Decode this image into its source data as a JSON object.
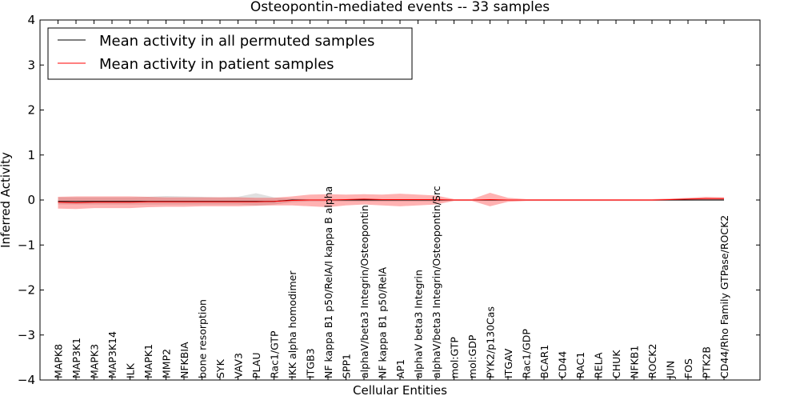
{
  "chart_data": {
    "type": "line",
    "title": "Osteopontin-mediated events -- 33 samples",
    "xlabel": "Cellular Entities",
    "ylabel": "Inferred Activity",
    "ylim": [
      -4,
      4
    ],
    "yticks": [
      "4",
      "3",
      "2",
      "1",
      "0",
      "−1",
      "−2",
      "−3",
      "−4"
    ],
    "ytick_values": [
      4,
      3,
      2,
      1,
      0,
      -1,
      -2,
      -3,
      -4
    ],
    "categories": [
      "MAPK8",
      "MAP3K1",
      "MAPK3",
      "MAP3K14",
      "ILK",
      "MAPK1",
      "MMP2",
      "NFKBIA",
      "bone resorption",
      "SYK",
      "VAV3",
      "PLAU",
      "Rac1/GTP",
      "IKK alpha homodimer",
      "ITGB3",
      "NF kappa B1 p50/RelA/I kappa B alpha",
      "SPP1",
      "alphaV/beta3 Integrin/Osteopontin",
      "NF kappa B1 p50/RelA",
      "AP1",
      "alphaV beta3 Integrin",
      "alphaV/beta3 Integrin/Osteopontin/Src",
      "mol:GTP",
      "mol:GDP",
      "PYK2/p130Cas",
      "ITGAV",
      "Rac1/GDP",
      "BCAR1",
      "CD44",
      "RAC1",
      "RELA",
      "CHUK",
      "NFKB1",
      "ROCK2",
      "JUN",
      "FOS",
      "PTK2B",
      "CD44/Rho Family GTPase/ROCK2"
    ],
    "legend": {
      "location": "top-left",
      "entries": [
        {
          "label": "Mean activity in all permuted samples",
          "color": "#000000"
        },
        {
          "label": "Mean activity in patient samples",
          "color": "#ff0000"
        }
      ]
    },
    "series": [
      {
        "name": "Mean activity in all permuted samples",
        "values": [
          -0.03,
          -0.03,
          -0.03,
          -0.03,
          -0.03,
          -0.03,
          -0.03,
          -0.03,
          -0.03,
          -0.03,
          -0.03,
          -0.03,
          -0.03,
          0.0,
          0.0,
          0.0,
          0.0,
          0.0,
          0.0,
          0.0,
          0.0,
          0.0,
          0.0,
          0.0,
          0.0,
          0.0,
          0.0,
          0.0,
          0.0,
          0.0,
          0.0,
          0.0,
          0.0,
          0.0,
          0.0,
          0.0,
          0.0,
          0.0
        ]
      },
      {
        "name": "Mean activity in patient samples",
        "values": [
          -0.05,
          -0.06,
          -0.05,
          -0.05,
          -0.05,
          -0.04,
          -0.04,
          -0.04,
          -0.04,
          -0.04,
          -0.04,
          -0.04,
          -0.03,
          -0.01,
          0.0,
          0.0,
          0.01,
          0.02,
          0.01,
          0.01,
          0.01,
          0.01,
          0.0,
          0.0,
          0.01,
          0.0,
          0.0,
          0.0,
          0.0,
          0.0,
          0.0,
          0.0,
          0.0,
          0.0,
          0.01,
          0.02,
          0.03,
          0.03
        ]
      }
    ],
    "bands": [
      {
        "name": "permuted samples spread",
        "color": "#bbbbbb",
        "upper": [
          0.06,
          0.06,
          0.06,
          0.06,
          0.06,
          0.07,
          0.09,
          0.08,
          0.07,
          0.06,
          0.07,
          0.15,
          0.06,
          0.03,
          0.02,
          0.02,
          0.02,
          0.02,
          0.02,
          0.02,
          0.02,
          0.02,
          0.01,
          0.01,
          0.01,
          0.01,
          0.01,
          0.01,
          0.01,
          0.01,
          0.01,
          0.01,
          0.01,
          0.01,
          0.01,
          0.01,
          0.02,
          0.02
        ],
        "lower": [
          -0.1,
          -0.1,
          -0.1,
          -0.1,
          -0.1,
          -0.1,
          -0.1,
          -0.1,
          -0.1,
          -0.1,
          -0.1,
          -0.12,
          -0.1,
          -0.05,
          -0.03,
          -0.03,
          -0.03,
          -0.03,
          -0.03,
          -0.03,
          -0.03,
          -0.03,
          -0.02,
          -0.02,
          -0.02,
          -0.02,
          -0.02,
          -0.02,
          -0.02,
          -0.02,
          -0.02,
          -0.02,
          -0.02,
          -0.02,
          -0.02,
          -0.02,
          -0.02,
          -0.02
        ]
      },
      {
        "name": "patient samples spread",
        "color": "#ff0000",
        "upper": [
          0.07,
          0.08,
          0.08,
          0.08,
          0.08,
          0.07,
          0.06,
          0.06,
          0.06,
          0.06,
          0.06,
          0.05,
          0.05,
          0.08,
          0.12,
          0.13,
          0.12,
          0.13,
          0.12,
          0.14,
          0.12,
          0.1,
          0.02,
          0.02,
          0.16,
          0.05,
          0.02,
          0.02,
          0.02,
          0.02,
          0.02,
          0.02,
          0.02,
          0.02,
          0.03,
          0.05,
          0.07,
          0.06
        ],
        "lower": [
          -0.19,
          -0.2,
          -0.18,
          -0.18,
          -0.18,
          -0.16,
          -0.15,
          -0.15,
          -0.14,
          -0.14,
          -0.14,
          -0.13,
          -0.12,
          -0.12,
          -0.14,
          -0.16,
          -0.12,
          -0.1,
          -0.12,
          -0.14,
          -0.12,
          -0.1,
          -0.02,
          -0.02,
          -0.14,
          -0.04,
          -0.02,
          -0.02,
          -0.02,
          -0.02,
          -0.02,
          -0.02,
          -0.02,
          -0.02,
          -0.01,
          0.0,
          0.01,
          0.0
        ]
      }
    ]
  }
}
